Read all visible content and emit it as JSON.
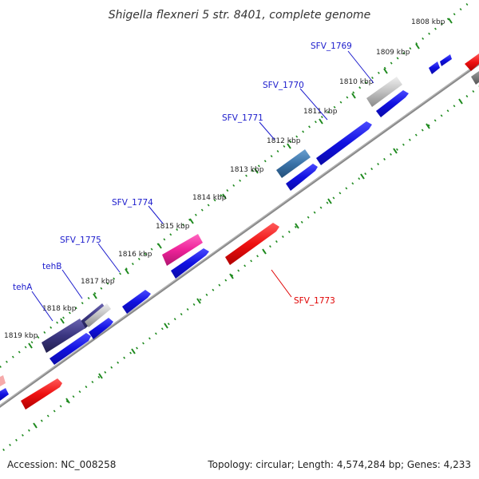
{
  "title": "Shigella flexneri 5 str. 8401, complete genome",
  "footer": {
    "accession": "Accession: NC_008258",
    "summary": "Topology: circular; Length: 4,574,284 bp; Genes: 4,233"
  },
  "ticks": [
    "1808 kbp",
    "1809 kbp",
    "1810 kbp",
    "1811 kbp",
    "1812 kbp",
    "1813 kbp",
    "1814 kbp",
    "1815 kbp",
    "1816 kbp",
    "1817 kbp",
    "1818 kbp",
    "1819 kbp"
  ],
  "gene_labels": {
    "sfv1769": "SFV_1769",
    "sfv1770": "SFV_1770",
    "sfv1771": "SFV_1771",
    "sfv1774": "SFV_1774",
    "sfv1775": "SFV_1775",
    "tehB": "tehB",
    "tehA": "tehA",
    "sfv1773": "SFV_1773"
  },
  "colors": {
    "backbone": "#888888",
    "tick_mark": "#1f8a1f",
    "cds_blue": "#1414e6",
    "rrna_red": "#ee1111",
    "pink": "#ee2299",
    "steel": "#3a72a8",
    "navy": "#3a3580",
    "gray": "#b8b8b8",
    "label_blue": "#1a1acc",
    "label_red": "#e00000"
  }
}
